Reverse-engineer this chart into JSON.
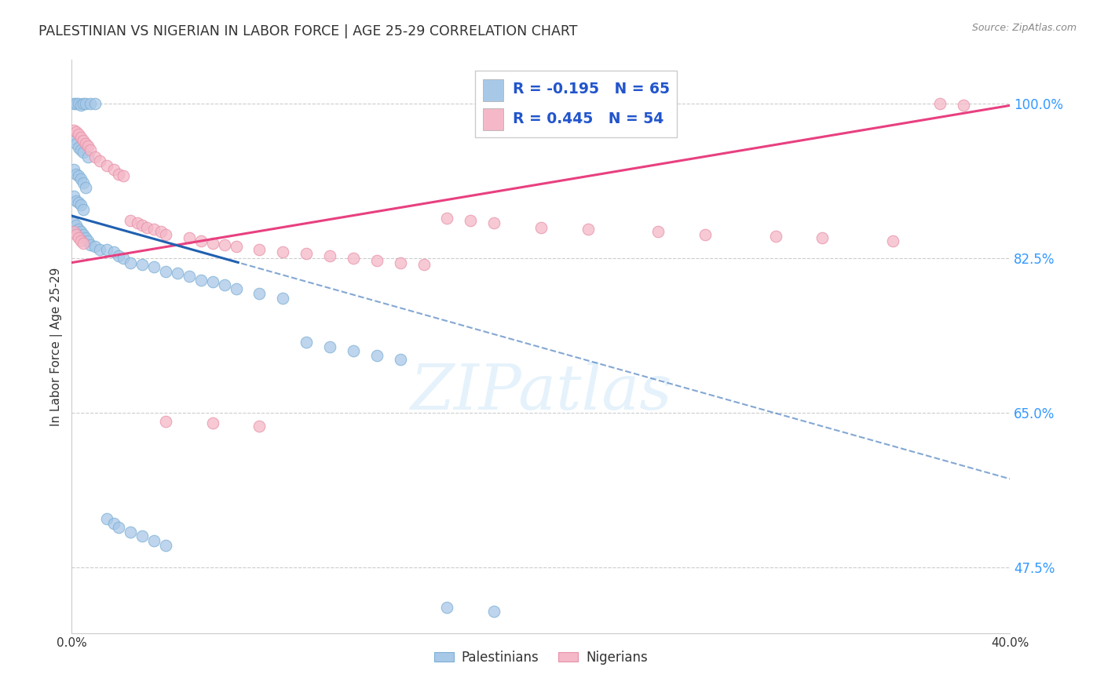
{
  "title": "PALESTINIAN VS NIGERIAN IN LABOR FORCE | AGE 25-29 CORRELATION CHART",
  "source": "Source: ZipAtlas.com",
  "ylabel": "In Labor Force | Age 25-29",
  "xmin": 0.0,
  "xmax": 0.4,
  "ymin": 0.4,
  "ymax": 1.05,
  "ytick_positions": [
    0.475,
    0.65,
    0.825,
    1.0
  ],
  "ytick_labels": [
    "47.5%",
    "65.0%",
    "82.5%",
    "100.0%"
  ],
  "xtick_positions": [
    0.0,
    0.4
  ],
  "xtick_labels": [
    "0.0%",
    "40.0%"
  ],
  "blue_fill": "#a8c8e8",
  "blue_edge": "#7bafd4",
  "pink_fill": "#f4b8c8",
  "pink_edge": "#e890a8",
  "blue_line_color": "#2060b0",
  "pink_line_color": "#e84080",
  "grid_color": "#cccccc",
  "R_blue": -0.195,
  "N_blue": 65,
  "R_pink": 0.445,
  "N_pink": 54,
  "legend_label_blue": "Palestinians",
  "legend_label_pink": "Nigerians",
  "watermark": "ZIPatlas",
  "blue_seed": 12,
  "pink_seed": 34,
  "blue_points_x": [
    0.001,
    0.002,
    0.003,
    0.004,
    0.005,
    0.006,
    0.008,
    0.01,
    0.001,
    0.002,
    0.003,
    0.004,
    0.005,
    0.007,
    0.001,
    0.002,
    0.003,
    0.004,
    0.005,
    0.006,
    0.001,
    0.002,
    0.003,
    0.004,
    0.005,
    0.001,
    0.002,
    0.003,
    0.004,
    0.005,
    0.006,
    0.007,
    0.008,
    0.01,
    0.012,
    0.015,
    0.018,
    0.02,
    0.022,
    0.025,
    0.03,
    0.035,
    0.04,
    0.045,
    0.05,
    0.055,
    0.06,
    0.065,
    0.07,
    0.08,
    0.09,
    0.1,
    0.11,
    0.12,
    0.13,
    0.14,
    0.015,
    0.018,
    0.02,
    0.025,
    0.03,
    0.035,
    0.04,
    0.16,
    0.18
  ],
  "blue_points_y": [
    1.0,
    1.0,
    1.0,
    0.998,
    1.0,
    1.0,
    1.0,
    1.0,
    0.96,
    0.955,
    0.95,
    0.948,
    0.945,
    0.94,
    0.925,
    0.92,
    0.918,
    0.915,
    0.91,
    0.905,
    0.895,
    0.89,
    0.888,
    0.885,
    0.88,
    0.865,
    0.862,
    0.858,
    0.855,
    0.852,
    0.848,
    0.845,
    0.84,
    0.838,
    0.835,
    0.835,
    0.832,
    0.828,
    0.825,
    0.82,
    0.818,
    0.815,
    0.81,
    0.808,
    0.805,
    0.8,
    0.798,
    0.795,
    0.79,
    0.785,
    0.78,
    0.73,
    0.725,
    0.72,
    0.715,
    0.71,
    0.53,
    0.525,
    0.52,
    0.515,
    0.51,
    0.505,
    0.5,
    0.43,
    0.425
  ],
  "pink_points_x": [
    0.001,
    0.002,
    0.003,
    0.004,
    0.005,
    0.006,
    0.007,
    0.008,
    0.01,
    0.012,
    0.015,
    0.018,
    0.02,
    0.022,
    0.001,
    0.002,
    0.003,
    0.004,
    0.005,
    0.025,
    0.028,
    0.03,
    0.032,
    0.035,
    0.038,
    0.04,
    0.05,
    0.055,
    0.06,
    0.065,
    0.07,
    0.08,
    0.09,
    0.1,
    0.11,
    0.12,
    0.13,
    0.14,
    0.15,
    0.16,
    0.17,
    0.18,
    0.2,
    0.22,
    0.25,
    0.27,
    0.3,
    0.32,
    0.35,
    0.37,
    0.38,
    0.04,
    0.06,
    0.08
  ],
  "pink_points_y": [
    0.97,
    0.968,
    0.965,
    0.962,
    0.958,
    0.955,
    0.952,
    0.948,
    0.94,
    0.935,
    0.93,
    0.925,
    0.92,
    0.918,
    0.855,
    0.852,
    0.848,
    0.845,
    0.842,
    0.868,
    0.865,
    0.862,
    0.86,
    0.858,
    0.855,
    0.852,
    0.848,
    0.845,
    0.842,
    0.84,
    0.838,
    0.835,
    0.832,
    0.83,
    0.828,
    0.825,
    0.822,
    0.82,
    0.818,
    0.87,
    0.868,
    0.865,
    0.86,
    0.858,
    0.855,
    0.852,
    0.85,
    0.848,
    0.845,
    1.0,
    0.998,
    0.64,
    0.638,
    0.635
  ]
}
